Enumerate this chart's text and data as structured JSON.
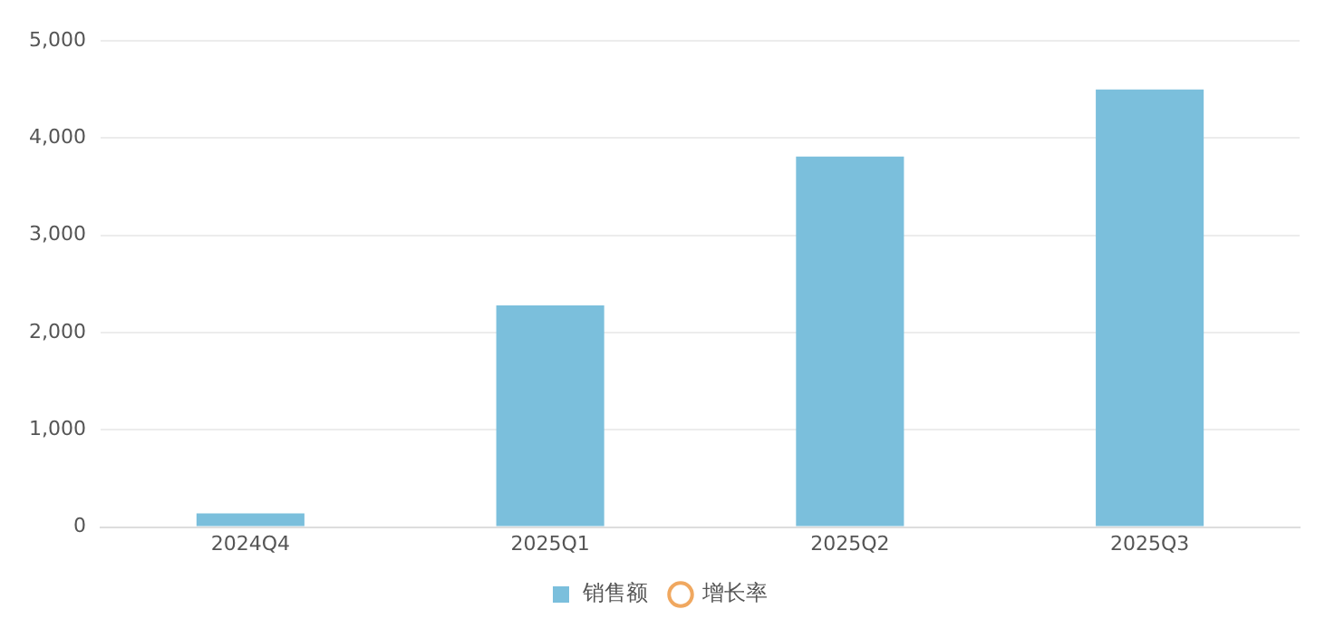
{
  "chart_data": {
    "type": "bar",
    "categories": [
      "2024Q4",
      "2025Q1",
      "2025Q2",
      "2025Q3"
    ],
    "series": [
      {
        "name": "销售额",
        "color": "#7bbfdc",
        "values": [
          140,
          2280,
          3810,
          4500
        ]
      },
      {
        "name": "增长率",
        "type": "line",
        "color": "#f0a860",
        "values": [
          null,
          null,
          null,
          null
        ]
      }
    ],
    "ylim": [
      0,
      5000
    ],
    "yticks": [
      {
        "value": 0,
        "label": "0"
      },
      {
        "value": 1000,
        "label": "1,000"
      },
      {
        "value": 2000,
        "label": "2,000"
      },
      {
        "value": 3000,
        "label": "3,000"
      },
      {
        "value": 4000,
        "label": "4,000"
      },
      {
        "value": 5000,
        "label": "5,000"
      }
    ],
    "grid": "y",
    "legend": "bottom",
    "marker": "circle"
  }
}
